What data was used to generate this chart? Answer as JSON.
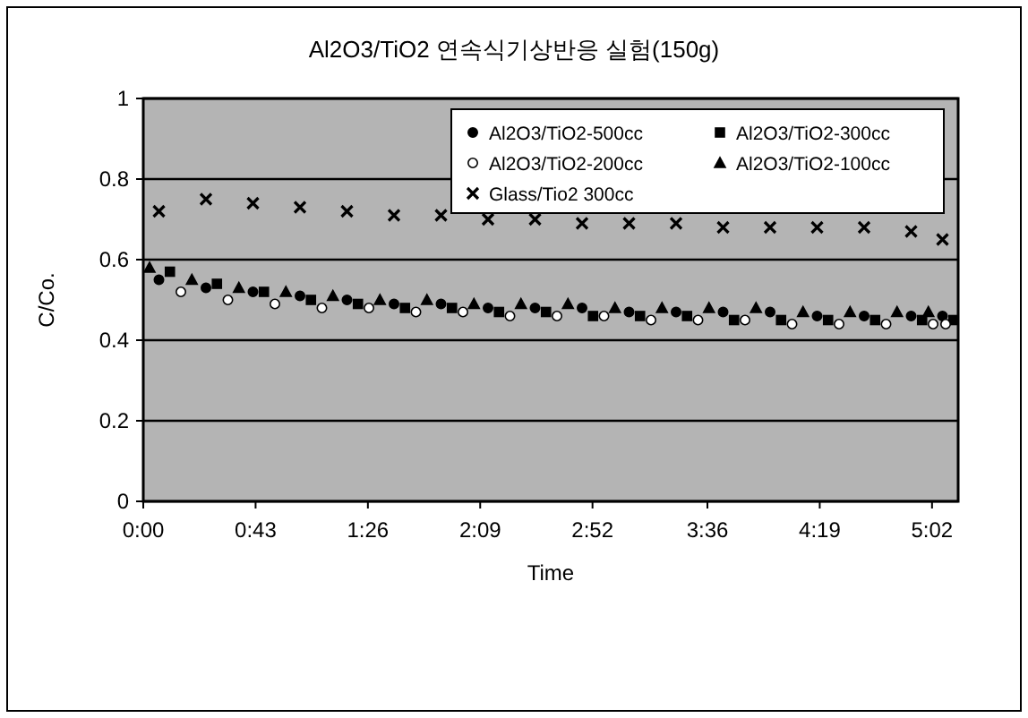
{
  "chart_data": {
    "type": "scatter",
    "title": "Al2O3/TiO2 연속식기상반응 실험(150g)",
    "xlabel": "Time",
    "ylabel": "C/Co.",
    "x": [
      0.1,
      0.4,
      0.7,
      1.0,
      1.3,
      1.6,
      1.9,
      2.2,
      2.5,
      2.8,
      3.1,
      3.4,
      3.7,
      4.0,
      4.3,
      4.6,
      4.9,
      5.1
    ],
    "series": [
      {
        "name": "Al2O3/TiO2-500cc",
        "color": "#000000",
        "marker": "circle",
        "values": [
          0.55,
          0.53,
          0.52,
          0.51,
          0.5,
          0.49,
          0.49,
          0.48,
          0.48,
          0.48,
          0.47,
          0.47,
          0.47,
          0.47,
          0.46,
          0.46,
          0.46,
          0.46
        ]
      },
      {
        "name": "Al2O3/TiO2-300cc",
        "color": "#000000",
        "marker": "square",
        "x": [
          0.17,
          0.47,
          0.77,
          1.07,
          1.37,
          1.67,
          1.97,
          2.27,
          2.57,
          2.87,
          3.17,
          3.47,
          3.77,
          4.07,
          4.37,
          4.67,
          4.97,
          5.17
        ],
        "values": [
          0.57,
          0.54,
          0.52,
          0.5,
          0.49,
          0.48,
          0.48,
          0.47,
          0.47,
          0.46,
          0.46,
          0.46,
          0.45,
          0.45,
          0.45,
          0.45,
          0.45,
          0.45
        ]
      },
      {
        "name": "Al2O3/TiO2-200cc",
        "color": "#ffffff",
        "marker": "circle",
        "x": [
          0.24,
          0.54,
          0.84,
          1.14,
          1.44,
          1.74,
          2.04,
          2.34,
          2.64,
          2.94,
          3.24,
          3.54,
          3.84,
          4.14,
          4.44,
          4.74,
          5.04,
          5.12
        ],
        "values": [
          0.52,
          0.5,
          0.49,
          0.48,
          0.48,
          0.47,
          0.47,
          0.46,
          0.46,
          0.46,
          0.45,
          0.45,
          0.45,
          0.44,
          0.44,
          0.44,
          0.44,
          0.44
        ]
      },
      {
        "name": "Al2O3/TiO2-100cc",
        "color": "#000000",
        "marker": "triangle",
        "x": [
          0.04,
          0.31,
          0.61,
          0.91,
          1.21,
          1.51,
          1.81,
          2.11,
          2.41,
          2.71,
          3.01,
          3.31,
          3.61,
          3.91,
          4.21,
          4.51,
          4.81,
          5.01
        ],
        "values": [
          0.58,
          0.55,
          0.53,
          0.52,
          0.51,
          0.5,
          0.5,
          0.49,
          0.49,
          0.49,
          0.48,
          0.48,
          0.48,
          0.48,
          0.47,
          0.47,
          0.47,
          0.47
        ]
      },
      {
        "name": "Glass/Tio2 300cc",
        "color": "#000000",
        "marker": "cross",
        "values": [
          0.72,
          0.75,
          0.74,
          0.73,
          0.72,
          0.71,
          0.71,
          0.7,
          0.7,
          0.69,
          0.69,
          0.69,
          0.68,
          0.68,
          0.68,
          0.68,
          0.67,
          0.65
        ]
      }
    ],
    "xlim": [
      0,
      5.2
    ],
    "ylim": [
      0,
      1
    ],
    "xticks": [
      {
        "value": 0,
        "label": "0:00"
      },
      {
        "value": 0.7167,
        "label": "0:43"
      },
      {
        "value": 1.4333,
        "label": "1:26"
      },
      {
        "value": 2.15,
        "label": "2:09"
      },
      {
        "value": 2.8667,
        "label": "2:52"
      },
      {
        "value": 3.6,
        "label": "3:36"
      },
      {
        "value": 4.3167,
        "label": "4:19"
      },
      {
        "value": 5.0333,
        "label": "5:02"
      }
    ],
    "yticks": [
      0,
      0.2,
      0.4,
      0.6,
      0.8,
      1
    ],
    "grid": "y",
    "legend": "top right"
  }
}
